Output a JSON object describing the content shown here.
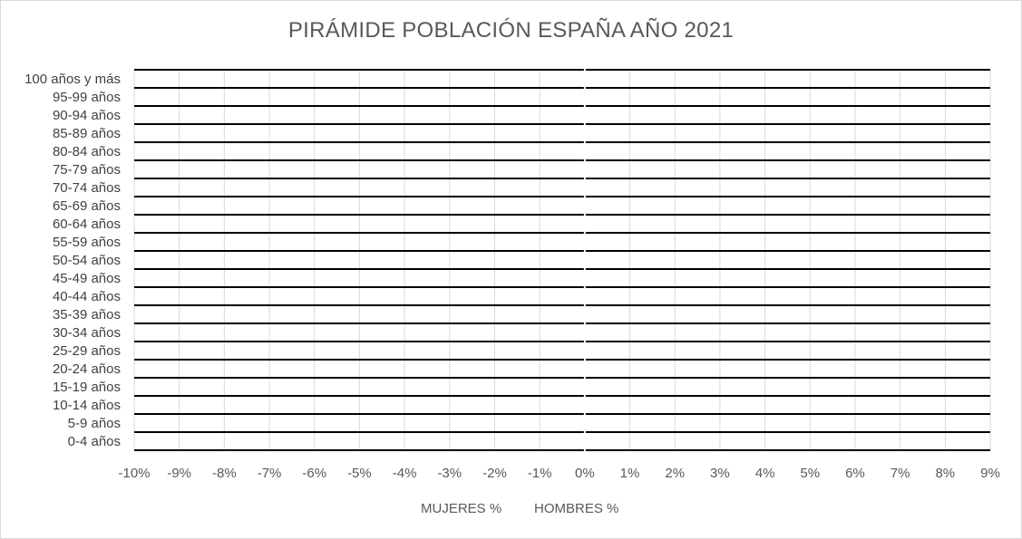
{
  "chart_data": {
    "type": "bar",
    "orientation": "horizontal",
    "title": "PIRÁMIDE POBLACIÓN ESPAÑA AÑO 2021",
    "categories": [
      "0-4 años",
      "5-9 años",
      "10-14 años",
      "15-19 años",
      "20-24 años",
      "25-29 años",
      "30-34 años",
      "35-39 años",
      "40-44 años",
      "45-49 años",
      "50-54 años",
      "55-59 años",
      "60-64 años",
      "65-69 años",
      "70-74 años",
      "75-79 años",
      "80-84 años",
      "85-89 años",
      "90-94 años",
      "95-99 años",
      "100 años y más"
    ],
    "xlim": [
      -10,
      9
    ],
    "x_ticks": [
      -10,
      -9,
      -8,
      -7,
      -6,
      -5,
      -4,
      -3,
      -2,
      -1,
      0,
      1,
      2,
      3,
      4,
      5,
      6,
      7,
      8,
      9
    ],
    "x_tick_labels": [
      "-10%",
      "-9%",
      "-8%",
      "-7%",
      "-6%",
      "-5%",
      "-4%",
      "-3%",
      "-2%",
      "-1%",
      "0%",
      "1%",
      "2%",
      "3%",
      "4%",
      "5%",
      "6%",
      "7%",
      "8%",
      "9%"
    ],
    "series": [
      {
        "name": "MUJERES %",
        "values": [
          0,
          0,
          0,
          0,
          0,
          0,
          0,
          0,
          0,
          0,
          0,
          0,
          0,
          0,
          0,
          0,
          0,
          0,
          0,
          0,
          0
        ]
      },
      {
        "name": "HOMBRES %",
        "values": [
          0,
          0,
          0,
          0,
          0,
          0,
          0,
          0,
          0,
          0,
          0,
          0,
          0,
          0,
          0,
          0,
          0,
          0,
          0,
          0,
          0
        ]
      }
    ],
    "grid": true,
    "legend_position": "bottom"
  },
  "colors": {
    "text": "#595959",
    "label": "#404040",
    "grid": "#d9d9d9",
    "rule": "#000000"
  }
}
